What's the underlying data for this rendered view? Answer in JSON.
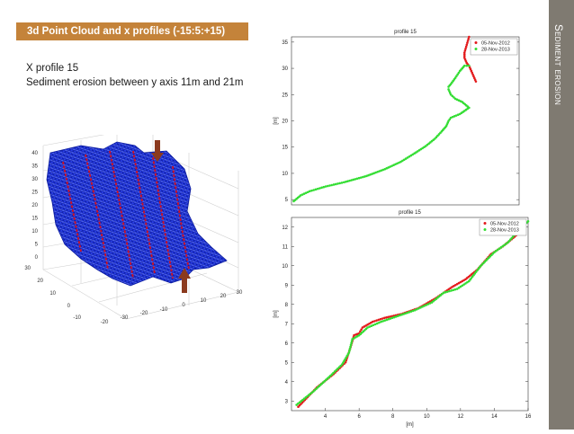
{
  "banner": {
    "title": "3d Point Cloud and x profiles  (-15:5:+15)"
  },
  "description": {
    "line1": "X profile 15",
    "line2": "Sediment erosion between y axis 11m and 21m"
  },
  "sidebar": {
    "title": "Sediment erosion"
  },
  "colors": {
    "banner": "#c4833a",
    "sidebar": "#7f7a71",
    "series_2012": "#e31a1c",
    "series_2013": "#33dd33",
    "mesh": "#1a2fd6"
  },
  "point_cloud_figure": {
    "icons": [
      "arrow-down-icon",
      "arrow-up-icon"
    ],
    "z_ticks": [
      "40",
      "35",
      "30",
      "25",
      "20",
      "15",
      "10",
      "5",
      "0"
    ],
    "y_ticks": [
      "30",
      "20",
      "10",
      "0",
      "-10"
    ],
    "x_ticks": [
      "-20",
      "-30",
      "-20",
      "-10",
      "0",
      "10",
      "20",
      "30"
    ]
  },
  "chart_data": [
    {
      "type": "scatter",
      "title": "profile 15",
      "xlabel": "",
      "ylabel": "[m]",
      "xlim": [
        0,
        10
      ],
      "ylim": [
        4,
        36
      ],
      "ytick_labels": [
        "5",
        "10",
        "15",
        "20",
        "25",
        "30",
        "35"
      ],
      "legend": "top-right",
      "series": [
        {
          "name": "05-Nov-2012",
          "color": "#e31a1c",
          "x": [
            7.8,
            7.7,
            7.6,
            7.6,
            7.7,
            7.8,
            7.9,
            8.0,
            8.1
          ],
          "y": [
            36,
            34.5,
            33,
            32,
            31,
            30.5,
            29.5,
            28.5,
            27.5
          ]
        },
        {
          "name": "28-Nov-2013",
          "color": "#33dd33",
          "x": [
            0.1,
            0.4,
            0.8,
            1.5,
            2.3,
            3.3,
            4.1,
            4.8,
            5.4,
            5.9,
            6.3,
            6.6,
            6.8,
            6.9,
            7.0,
            7.4,
            7.8,
            7.5,
            7.2,
            7.0,
            6.9,
            6.9,
            7.0,
            7.2,
            7.4,
            7.6,
            7.8
          ],
          "y": [
            4.7,
            5.8,
            6.6,
            7.5,
            8.3,
            9.5,
            10.8,
            12.2,
            13.8,
            15.2,
            16.6,
            18.0,
            19.0,
            20.0,
            20.6,
            21.3,
            22.5,
            23.6,
            24.2,
            25.0,
            26.0,
            26.5,
            27.0,
            28.2,
            29.5,
            30.5,
            30.5
          ]
        }
      ]
    },
    {
      "type": "scatter",
      "title": "profile 15",
      "xlabel": "[m]",
      "ylabel": "[m]",
      "xlim": [
        2,
        16
      ],
      "ylim": [
        2.5,
        12.5
      ],
      "xtick_labels": [
        "4",
        "6",
        "8",
        "10",
        "12",
        "14",
        "16"
      ],
      "ytick_labels": [
        "3",
        "4",
        "5",
        "6",
        "7",
        "8",
        "9",
        "10",
        "11",
        "12"
      ],
      "legend": "top-right",
      "series": [
        {
          "name": "05-Nov-2012",
          "color": "#e31a1c",
          "x": [
            2.4,
            3.5,
            4.5,
            5.2,
            5.5,
            5.7,
            6.0,
            6.2,
            6.8,
            7.5,
            8.5,
            9.5,
            10.5,
            11.5,
            12.3,
            13.0,
            13.8,
            14.5,
            15.2,
            15.8
          ],
          "y": [
            2.7,
            3.7,
            4.4,
            5.0,
            5.8,
            6.4,
            6.5,
            6.8,
            7.1,
            7.3,
            7.5,
            7.8,
            8.3,
            8.9,
            9.3,
            9.8,
            10.6,
            11.0,
            11.5,
            12.0
          ]
        },
        {
          "name": "28-Nov-2013",
          "color": "#33dd33",
          "x": [
            2.3,
            3.3,
            4.3,
            5.0,
            5.4,
            5.6,
            6.0,
            6.5,
            7.3,
            8.3,
            9.3,
            10.3,
            11.0,
            11.8,
            12.5,
            13.2,
            14.0,
            14.8,
            15.5,
            16.0
          ],
          "y": [
            2.8,
            3.5,
            4.3,
            4.9,
            5.5,
            6.2,
            6.4,
            6.8,
            7.1,
            7.4,
            7.7,
            8.1,
            8.6,
            8.8,
            9.2,
            10.0,
            10.7,
            11.2,
            11.9,
            12.3
          ]
        }
      ]
    }
  ]
}
